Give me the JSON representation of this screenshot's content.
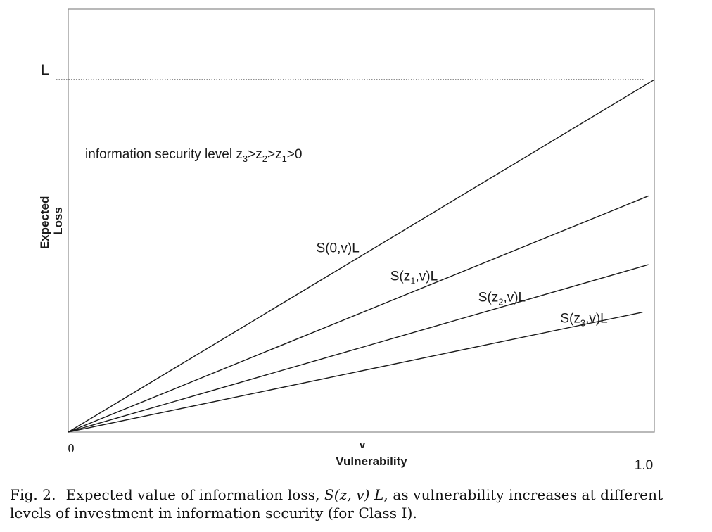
{
  "chart_data": {
    "type": "line",
    "xlabel": "Vulnerability",
    "xlabel_symbol": "v",
    "ylabel_line1": "Expected",
    "ylabel_line2": "Loss",
    "x_tick_min": "0",
    "x_tick_max": "1.0",
    "xlim": [
      0,
      1
    ],
    "ylim": [
      0,
      1.2
    ],
    "reference_line": {
      "label": "L",
      "y": 1.0,
      "style": "dotted"
    },
    "annotation": {
      "text": "information security level z",
      "sub3": "3",
      "gt1": ">z",
      "sub2": "2",
      "gt2": ">z",
      "sub1": "1",
      "tail": ">0"
    },
    "series": [
      {
        "name": "S(0,v)L",
        "name_pre": "S(0,v)L",
        "name_sub": "",
        "name_post": "",
        "x": [
          0,
          1.0
        ],
        "y": [
          0,
          1.0
        ],
        "label_at": [
          0.46,
          0.51
        ]
      },
      {
        "name": "S(z1,v)L",
        "name_pre": "S(z",
        "name_sub": "1",
        "name_post": ",v)L",
        "x": [
          0,
          0.99
        ],
        "y": [
          0,
          0.67
        ],
        "label_at": [
          0.59,
          0.43
        ]
      },
      {
        "name": "S(z2,v)L",
        "name_pre": "S(z",
        "name_sub": "2",
        "name_post": ",v)L",
        "x": [
          0,
          0.99
        ],
        "y": [
          0,
          0.475
        ],
        "label_at": [
          0.74,
          0.37
        ]
      },
      {
        "name": "S(z3,v)L",
        "name_pre": "S(z",
        "name_sub": "3",
        "name_post": ",v)L",
        "x": [
          0,
          0.98
        ],
        "y": [
          0,
          0.34
        ],
        "label_at": [
          0.88,
          0.31
        ]
      }
    ]
  },
  "caption": {
    "label": "Fig. 2.",
    "text_before": "Expected value of information loss,",
    "formula": "S(z, v) L",
    "text_after": ", as vulnerability increases at different levels of investment in information security (for Class I)."
  }
}
